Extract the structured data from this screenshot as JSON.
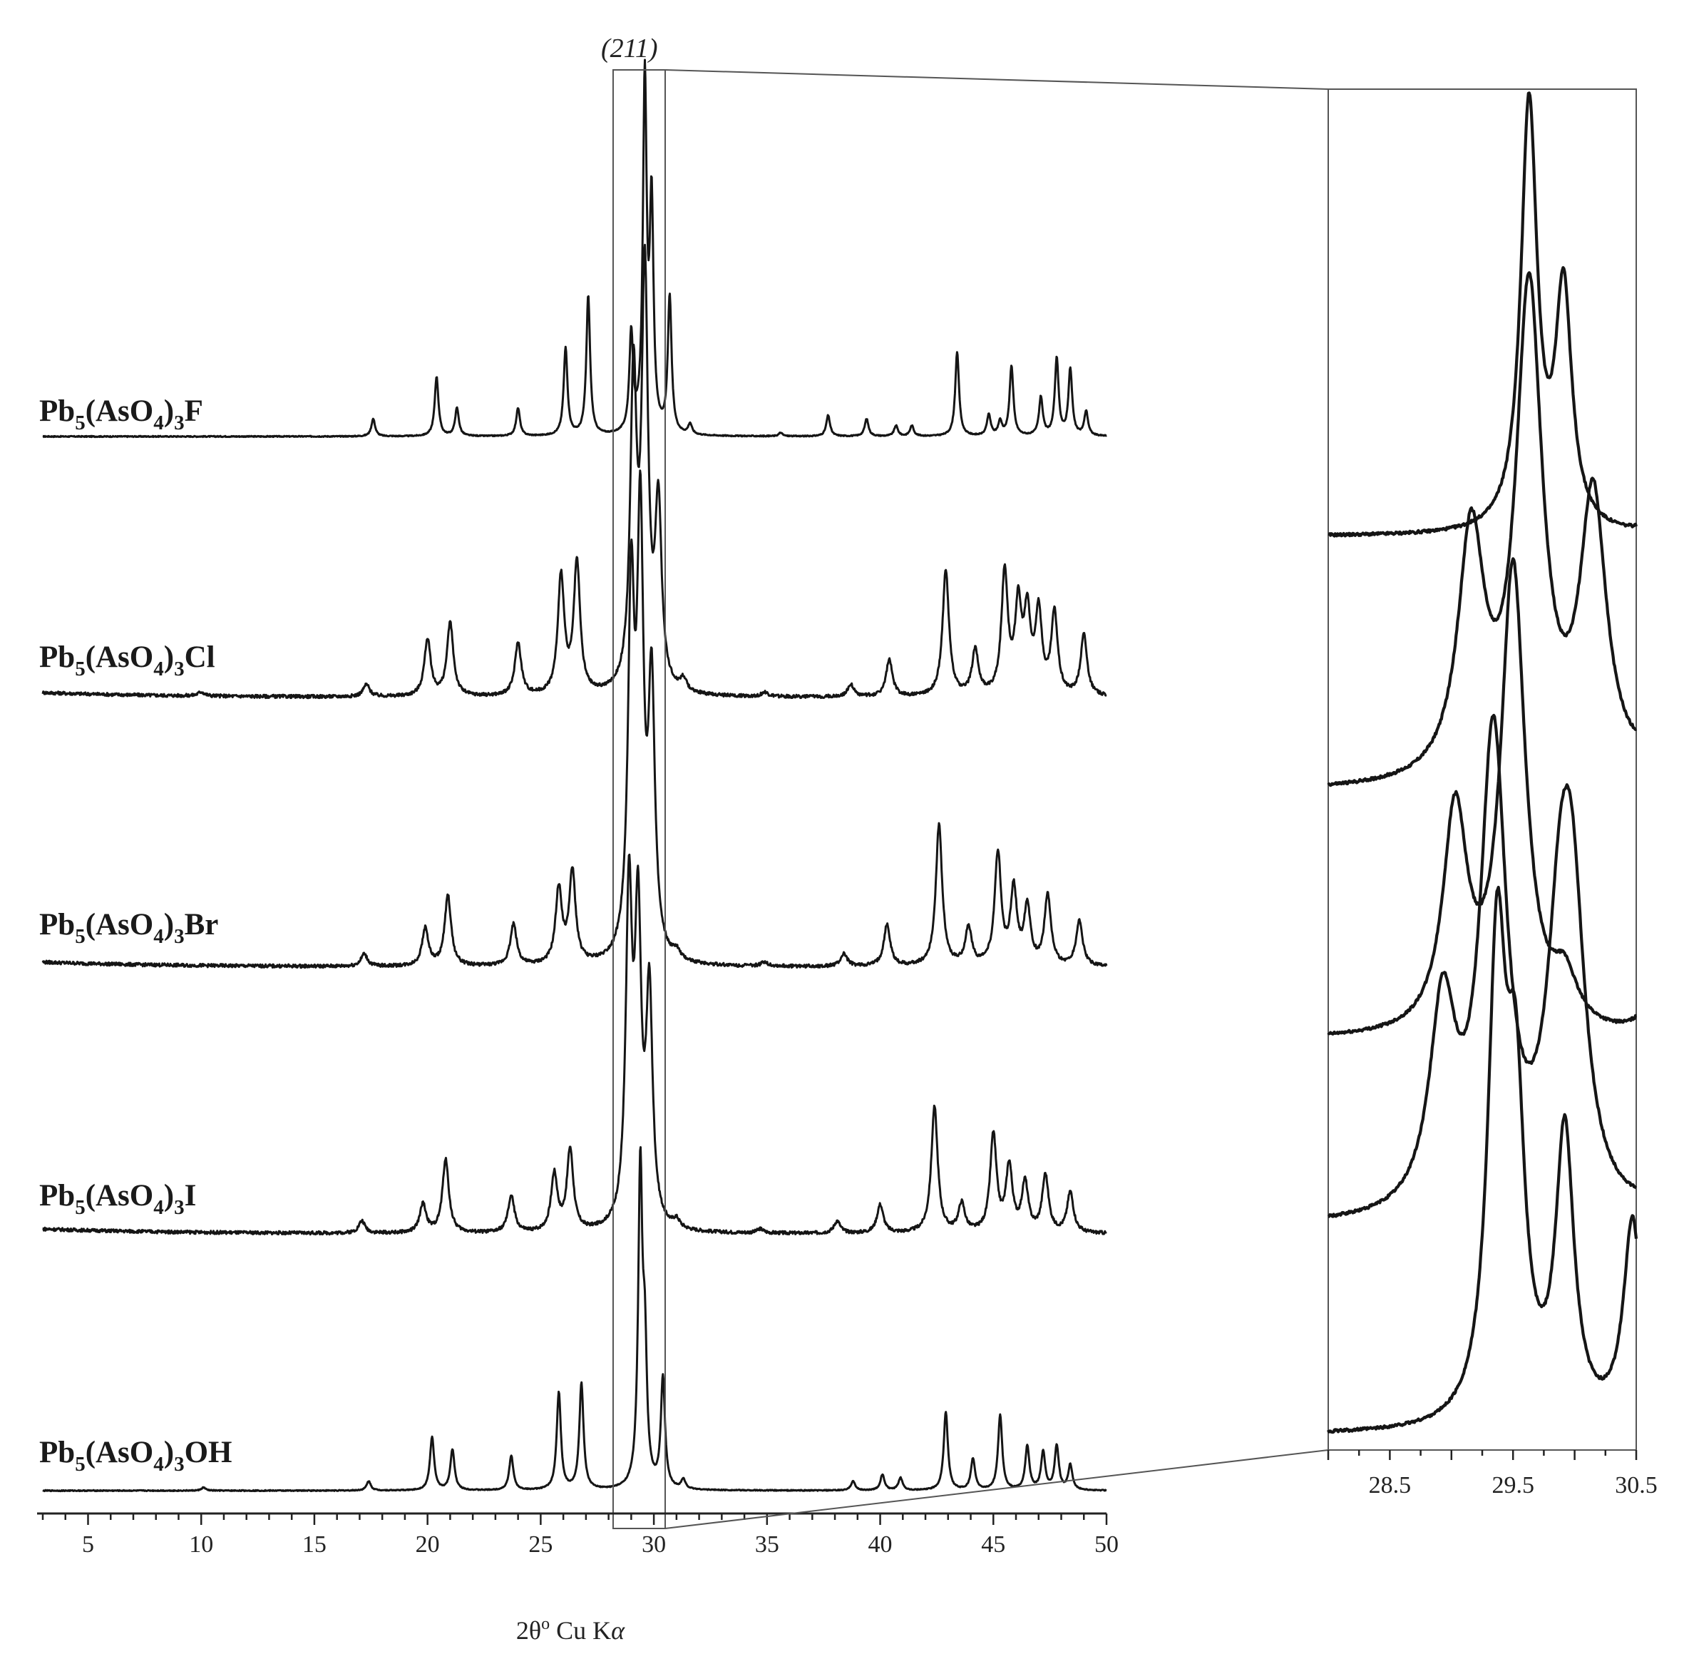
{
  "chart_data": [
    {
      "type": "line",
      "xlabel": "2θ",
      "xlabel_sup": "o",
      "xlabel_tail": " Cu K",
      "xlabel_greek": "α",
      "xlim": [
        3,
        50
      ],
      "xticks": [
        5,
        10,
        15,
        20,
        25,
        30,
        35,
        40,
        45,
        50
      ],
      "minor_tick_step": 1,
      "annotation": "(211)",
      "highlight_range": [
        28.2,
        30.5
      ],
      "series": [
        {
          "id": "F",
          "label_base": "Pb",
          "label_sub1": "5",
          "label_mid": "(AsO",
          "label_sub2": "4",
          "label_close": ")",
          "label_sub3": "3",
          "label_end": "F",
          "peaks": [
            [
              17.6,
              0.05
            ],
            [
              20.4,
              0.17
            ],
            [
              21.3,
              0.08
            ],
            [
              24.0,
              0.08
            ],
            [
              26.1,
              0.25
            ],
            [
              27.1,
              0.4
            ],
            [
              29.0,
              0.28
            ],
            [
              29.6,
              1.0
            ],
            [
              29.9,
              0.64
            ],
            [
              30.7,
              0.39
            ],
            [
              31.6,
              0.03
            ],
            [
              35.6,
              0.01
            ],
            [
              37.7,
              0.06
            ],
            [
              39.4,
              0.05
            ],
            [
              40.7,
              0.03
            ],
            [
              41.4,
              0.03
            ],
            [
              43.4,
              0.24
            ],
            [
              44.8,
              0.06
            ],
            [
              45.3,
              0.04
            ],
            [
              45.8,
              0.2
            ],
            [
              47.1,
              0.11
            ],
            [
              47.8,
              0.22
            ],
            [
              48.4,
              0.19
            ],
            [
              49.1,
              0.07
            ]
          ]
        },
        {
          "id": "Cl",
          "label_base": "Pb",
          "label_sub1": "5",
          "label_mid": "(AsO",
          "label_sub2": "4",
          "label_close": ")",
          "label_sub3": "3",
          "label_end": "Cl",
          "peaks": [
            [
              10.0,
              0.01
            ],
            [
              17.3,
              0.03
            ],
            [
              20.0,
              0.14
            ],
            [
              21.0,
              0.18
            ],
            [
              24.0,
              0.13
            ],
            [
              25.9,
              0.29
            ],
            [
              26.6,
              0.32
            ],
            [
              29.1,
              0.75
            ],
            [
              29.6,
              1.0
            ],
            [
              30.2,
              0.44
            ],
            [
              31.3,
              0.03
            ],
            [
              34.9,
              0.01
            ],
            [
              38.7,
              0.03
            ],
            [
              40.4,
              0.09
            ],
            [
              42.9,
              0.31
            ],
            [
              44.2,
              0.11
            ],
            [
              45.5,
              0.3
            ],
            [
              46.1,
              0.21
            ],
            [
              46.5,
              0.19
            ],
            [
              47.0,
              0.2
            ],
            [
              47.7,
              0.2
            ],
            [
              49.0,
              0.15
            ]
          ]
        },
        {
          "id": "Br",
          "label_base": "Pb",
          "label_sub1": "5",
          "label_mid": "(AsO",
          "label_sub2": "4",
          "label_close": ")",
          "label_sub3": "3",
          "label_end": "Br",
          "peaks": [
            [
              17.2,
              0.03
            ],
            [
              19.9,
              0.09
            ],
            [
              20.9,
              0.17
            ],
            [
              23.8,
              0.1
            ],
            [
              25.8,
              0.18
            ],
            [
              26.4,
              0.22
            ],
            [
              29.0,
              0.85
            ],
            [
              29.4,
              1.0
            ],
            [
              29.9,
              0.64
            ],
            [
              31.0,
              0.02
            ],
            [
              34.9,
              0.01
            ],
            [
              38.4,
              0.03
            ],
            [
              40.3,
              0.1
            ],
            [
              42.6,
              0.34
            ],
            [
              43.9,
              0.09
            ],
            [
              45.2,
              0.27
            ],
            [
              45.9,
              0.18
            ],
            [
              46.5,
              0.14
            ],
            [
              47.4,
              0.17
            ],
            [
              48.8,
              0.11
            ]
          ]
        },
        {
          "id": "I",
          "label_base": "Pb",
          "label_sub1": "5",
          "label_mid": "(AsO",
          "label_sub2": "4",
          "label_close": ")",
          "label_sub3": "3",
          "label_end": "I",
          "peaks": [
            [
              17.1,
              0.03
            ],
            [
              19.8,
              0.07
            ],
            [
              20.8,
              0.18
            ],
            [
              23.7,
              0.09
            ],
            [
              25.6,
              0.14
            ],
            [
              26.3,
              0.2
            ],
            [
              28.9,
              0.8
            ],
            [
              29.3,
              0.72
            ],
            [
              29.8,
              0.56
            ],
            [
              31.0,
              0.02
            ],
            [
              34.7,
              0.01
            ],
            [
              38.1,
              0.03
            ],
            [
              40.0,
              0.07
            ],
            [
              42.4,
              0.31
            ],
            [
              43.6,
              0.07
            ],
            [
              45.0,
              0.24
            ],
            [
              45.7,
              0.16
            ],
            [
              46.4,
              0.12
            ],
            [
              47.3,
              0.14
            ],
            [
              48.4,
              0.1
            ]
          ]
        },
        {
          "id": "OH",
          "label_base": "Pb",
          "label_sub1": "5",
          "label_mid": "(AsO",
          "label_sub2": "4",
          "label_close": ")",
          "label_sub3": "3",
          "label_end": "OH",
          "peaks": [
            [
              10.1,
              0.01
            ],
            [
              17.4,
              0.03
            ],
            [
              20.2,
              0.17
            ],
            [
              21.1,
              0.13
            ],
            [
              23.7,
              0.11
            ],
            [
              25.8,
              0.31
            ],
            [
              26.8,
              0.34
            ],
            [
              29.4,
              1.0
            ],
            [
              29.6,
              0.4
            ],
            [
              30.4,
              0.35
            ],
            [
              31.3,
              0.03
            ],
            [
              38.8,
              0.03
            ],
            [
              40.1,
              0.05
            ],
            [
              40.9,
              0.04
            ],
            [
              42.9,
              0.25
            ],
            [
              44.1,
              0.1
            ],
            [
              45.3,
              0.24
            ],
            [
              46.5,
              0.14
            ],
            [
              47.2,
              0.12
            ],
            [
              47.8,
              0.14
            ],
            [
              48.4,
              0.08
            ]
          ]
        }
      ]
    },
    {
      "type": "line",
      "xlim": [
        28.0,
        30.5
      ],
      "xticks": [
        28.5,
        29.5,
        30.5
      ],
      "series": [
        {
          "id": "F",
          "peaks": [
            [
              29.63,
              0.92
            ],
            [
              29.91,
              0.51
            ],
            [
              30.55,
              0.01
            ]
          ]
        },
        {
          "id": "Cl",
          "peaks": [
            [
              29.16,
              0.5
            ],
            [
              29.63,
              1.0
            ],
            [
              30.15,
              0.57
            ],
            [
              30.8,
              0.2
            ]
          ]
        },
        {
          "id": "Br",
          "peaks": [
            [
              29.03,
              0.47
            ],
            [
              29.5,
              1.0
            ],
            [
              29.92,
              0.1
            ],
            [
              30.6,
              0.05
            ]
          ]
        },
        {
          "id": "I",
          "peaks": [
            [
              28.93,
              0.43
            ],
            [
              29.34,
              1.0
            ],
            [
              29.88,
              0.46
            ],
            [
              29.98,
              0.55
            ],
            [
              30.8,
              0.1
            ]
          ]
        },
        {
          "id": "OH",
          "peaks": [
            [
              29.37,
              1.0
            ],
            [
              29.52,
              0.65
            ],
            [
              29.92,
              0.63
            ],
            [
              30.47,
              0.45
            ]
          ]
        }
      ]
    }
  ]
}
